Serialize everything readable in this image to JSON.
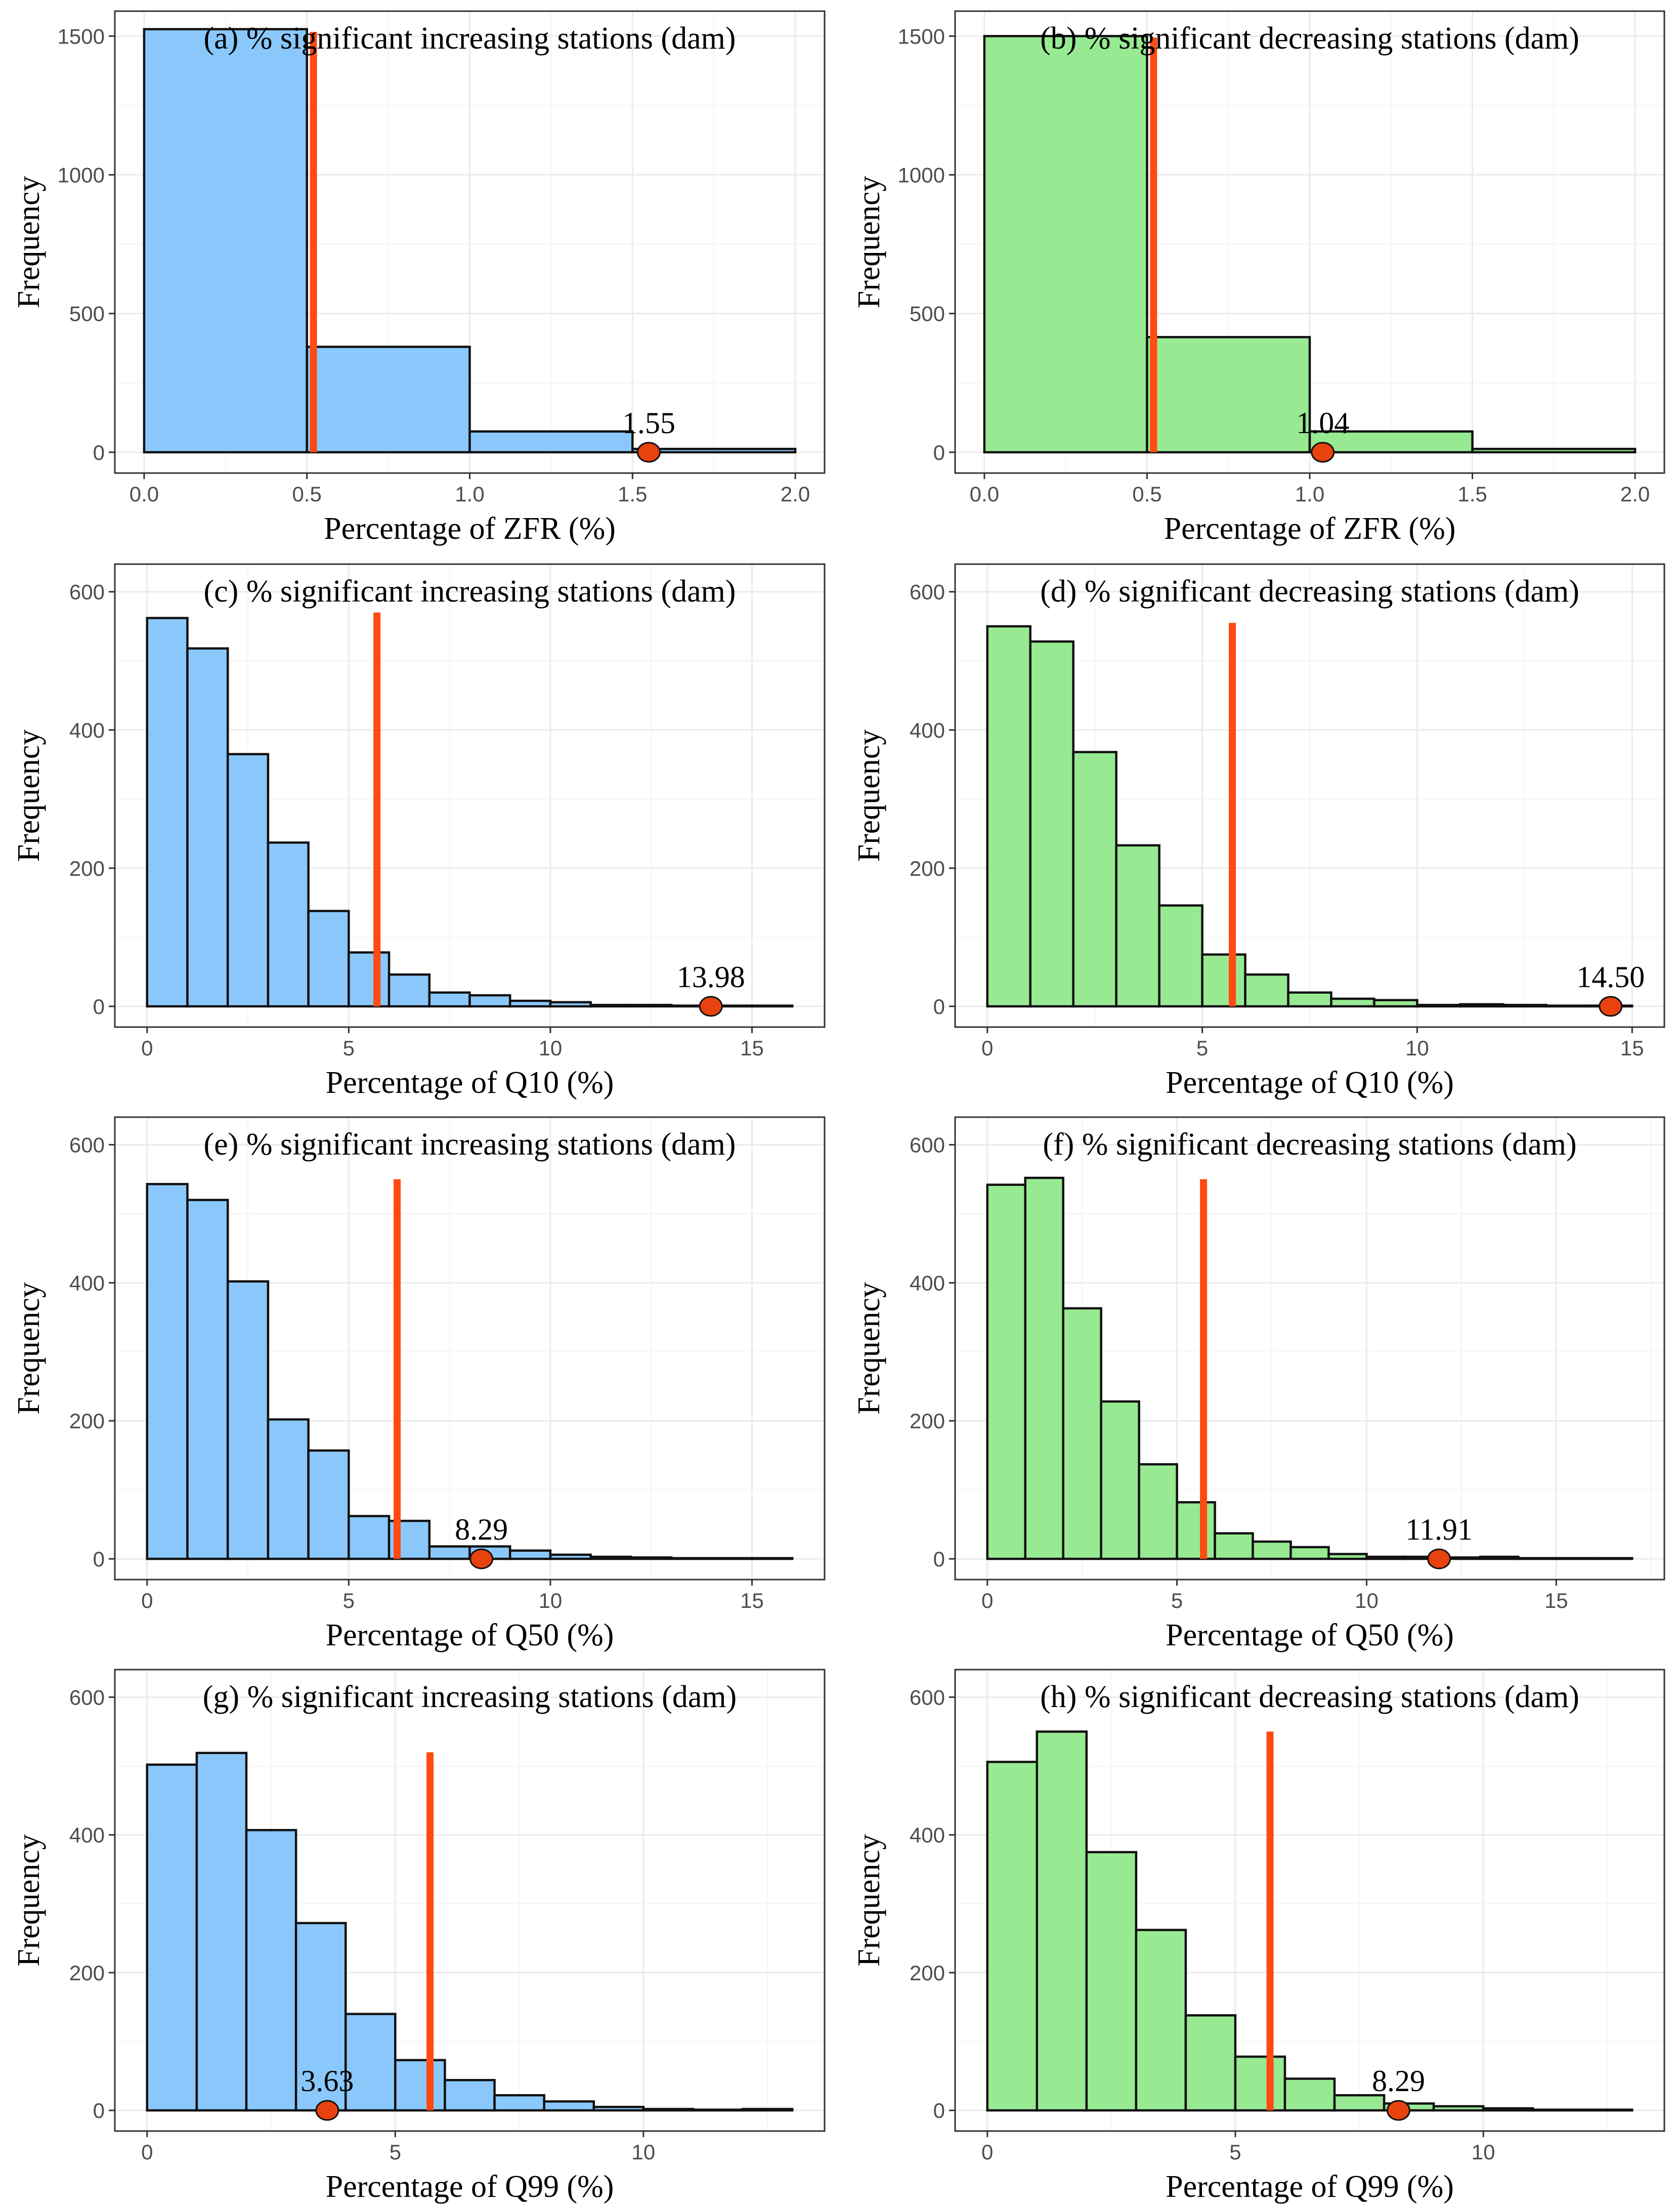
{
  "chart_data": [
    {
      "id": "a",
      "type": "bar",
      "theme": "blue",
      "title": "(a) % significant increasing stations (dam)",
      "xlabel": "Percentage of ZFR (%)",
      "ylabel": "Frequency",
      "xlim": [
        -0.09,
        2.09
      ],
      "ylim": [
        -75,
        1590
      ],
      "xticks": [
        0.0,
        0.5,
        1.0,
        1.5,
        2.0
      ],
      "xtick_labels": [
        "0.0",
        "0.5",
        "1.0",
        "1.5",
        "2.0"
      ],
      "yticks": [
        0,
        500,
        1000,
        1500
      ],
      "ytick_labels": [
        "0",
        "500",
        "1000",
        "1500"
      ],
      "bin_edges": [
        0.0,
        0.5,
        1.0,
        1.5,
        2.0
      ],
      "values": [
        1525,
        380,
        75,
        12
      ],
      "reference_line": {
        "x": 0.52,
        "y_top": 1515
      },
      "observed": {
        "x": 1.55,
        "label": "1.55"
      }
    },
    {
      "id": "b",
      "type": "bar",
      "theme": "green",
      "title": "(b) % significant decreasing stations (dam)",
      "xlabel": "Percentage of ZFR (%)",
      "ylabel": "Frequency",
      "xlim": [
        -0.09,
        2.09
      ],
      "ylim": [
        -75,
        1590
      ],
      "xticks": [
        0.0,
        0.5,
        1.0,
        1.5,
        2.0
      ],
      "xtick_labels": [
        "0.0",
        "0.5",
        "1.0",
        "1.5",
        "2.0"
      ],
      "yticks": [
        0,
        500,
        1000,
        1500
      ],
      "ytick_labels": [
        "0",
        "500",
        "1000",
        "1500"
      ],
      "bin_edges": [
        0.0,
        0.5,
        1.0,
        1.5,
        2.0
      ],
      "values": [
        1500,
        415,
        75,
        12
      ],
      "reference_line": {
        "x": 0.52,
        "y_top": 1495
      },
      "observed": {
        "x": 1.04,
        "label": "1.04"
      }
    },
    {
      "id": "c",
      "type": "bar",
      "theme": "blue",
      "title": "(c) % significant increasing stations (dam)",
      "xlabel": "Percentage of Q10 (%)",
      "ylabel": "Frequency",
      "xlim": [
        -0.8,
        16.8
      ],
      "ylim": [
        -30,
        640
      ],
      "xticks": [
        0,
        5,
        10,
        15
      ],
      "xtick_labels": [
        "0",
        "5",
        "10",
        "15"
      ],
      "yticks": [
        0,
        200,
        400,
        600
      ],
      "ytick_labels": [
        "0",
        "200",
        "400",
        "600"
      ],
      "bin_edges": [
        0,
        1,
        2,
        3,
        4,
        5,
        6,
        7,
        8,
        9,
        10,
        11,
        12,
        13,
        14,
        15,
        16
      ],
      "values": [
        562,
        518,
        365,
        237,
        138,
        78,
        46,
        20,
        16,
        8,
        6,
        2,
        2,
        1,
        1,
        1
      ],
      "reference_line": {
        "x": 5.7,
        "y_top": 570
      },
      "observed": {
        "x": 13.98,
        "label": "13.98"
      }
    },
    {
      "id": "d",
      "type": "bar",
      "theme": "green",
      "title": "(d) % significant decreasing stations (dam)",
      "xlabel": "Percentage of Q10 (%)",
      "ylabel": "Frequency",
      "xlim": [
        -0.75,
        15.75
      ],
      "ylim": [
        -30,
        640
      ],
      "xticks": [
        0,
        5,
        10,
        15
      ],
      "xtick_labels": [
        "0",
        "5",
        "10",
        "15"
      ],
      "yticks": [
        0,
        200,
        400,
        600
      ],
      "ytick_labels": [
        "0",
        "200",
        "400",
        "600"
      ],
      "bin_edges": [
        0,
        1,
        2,
        3,
        4,
        5,
        6,
        7,
        8,
        9,
        10,
        11,
        12,
        13,
        14,
        15
      ],
      "values": [
        550,
        528,
        368,
        233,
        146,
        75,
        46,
        20,
        11,
        9,
        2,
        3,
        2,
        1,
        1
      ],
      "reference_line": {
        "x": 5.7,
        "y_top": 555
      },
      "observed": {
        "x": 14.5,
        "label": "14.50"
      }
    },
    {
      "id": "e",
      "type": "bar",
      "theme": "blue",
      "title": "(e) % significant increasing stations (dam)",
      "xlabel": "Percentage of Q50 (%)",
      "ylabel": "Frequency",
      "xlim": [
        -0.8,
        16.8
      ],
      "ylim": [
        -30,
        640
      ],
      "xticks": [
        0,
        5,
        10,
        15
      ],
      "xtick_labels": [
        "0",
        "5",
        "10",
        "15"
      ],
      "yticks": [
        0,
        200,
        400,
        600
      ],
      "ytick_labels": [
        "0",
        "200",
        "400",
        "600"
      ],
      "bin_edges": [
        0,
        1,
        2,
        3,
        4,
        5,
        6,
        7,
        8,
        9,
        10,
        11,
        12,
        13,
        14,
        15,
        16
      ],
      "values": [
        543,
        520,
        402,
        202,
        157,
        62,
        55,
        18,
        18,
        12,
        6,
        3,
        2,
        1,
        1,
        1
      ],
      "reference_line": {
        "x": 6.2,
        "y_top": 550
      },
      "observed": {
        "x": 8.29,
        "label": "8.29"
      }
    },
    {
      "id": "f",
      "type": "bar",
      "theme": "green",
      "title": "(f) % significant decreasing stations (dam)",
      "xlabel": "Percentage of Q50 (%)",
      "ylabel": "Frequency",
      "xlim": [
        -0.85,
        17.85
      ],
      "ylim": [
        -30,
        640
      ],
      "xticks": [
        0,
        5,
        10,
        15
      ],
      "xtick_labels": [
        "0",
        "5",
        "10",
        "15"
      ],
      "yticks": [
        0,
        200,
        400,
        600
      ],
      "ytick_labels": [
        "0",
        "200",
        "400",
        "600"
      ],
      "bin_edges": [
        0,
        1,
        2,
        3,
        4,
        5,
        6,
        7,
        8,
        9,
        10,
        11,
        12,
        13,
        14,
        15,
        16,
        17
      ],
      "values": [
        542,
        552,
        363,
        228,
        137,
        82,
        37,
        25,
        17,
        7,
        3,
        3,
        2,
        3,
        1,
        1,
        1
      ],
      "reference_line": {
        "x": 5.7,
        "y_top": 550
      },
      "observed": {
        "x": 11.91,
        "label": "11.91"
      }
    },
    {
      "id": "g",
      "type": "bar",
      "theme": "blue",
      "title": "(g) % significant increasing stations (dam)",
      "xlabel": "Percentage of Q99 (%)",
      "ylabel": "Frequency",
      "xlim": [
        -0.65,
        13.65
      ],
      "ylim": [
        -30,
        640
      ],
      "xticks": [
        0,
        5,
        10
      ],
      "xtick_labels": [
        "0",
        "5",
        "10"
      ],
      "yticks": [
        0,
        200,
        400,
        600
      ],
      "ytick_labels": [
        "0",
        "200",
        "400",
        "600"
      ],
      "bin_edges": [
        0,
        1,
        2,
        3,
        4,
        5,
        6,
        7,
        8,
        9,
        10,
        11,
        12,
        13
      ],
      "values": [
        502,
        519,
        407,
        272,
        140,
        73,
        44,
        22,
        13,
        5,
        2,
        1,
        2
      ],
      "reference_line": {
        "x": 5.7,
        "y_top": 520
      },
      "observed": {
        "x": 3.63,
        "label": "3.63"
      }
    },
    {
      "id": "h",
      "type": "bar",
      "theme": "green",
      "title": "(h) % significant decreasing stations (dam)",
      "xlabel": "Percentage of Q99 (%)",
      "ylabel": "Frequency",
      "xlim": [
        -0.65,
        13.65
      ],
      "ylim": [
        -30,
        640
      ],
      "xticks": [
        0,
        5,
        10
      ],
      "xtick_labels": [
        "0",
        "5",
        "10"
      ],
      "yticks": [
        0,
        200,
        400,
        600
      ],
      "ytick_labels": [
        "0",
        "200",
        "400",
        "600"
      ],
      "bin_edges": [
        0,
        1,
        2,
        3,
        4,
        5,
        6,
        7,
        8,
        9,
        10,
        11,
        12,
        13
      ],
      "values": [
        506,
        550,
        375,
        262,
        138,
        78,
        46,
        22,
        10,
        6,
        3,
        1,
        1
      ],
      "reference_line": {
        "x": 5.7,
        "y_top": 550
      },
      "observed": {
        "x": 8.29,
        "label": "8.29"
      }
    }
  ]
}
